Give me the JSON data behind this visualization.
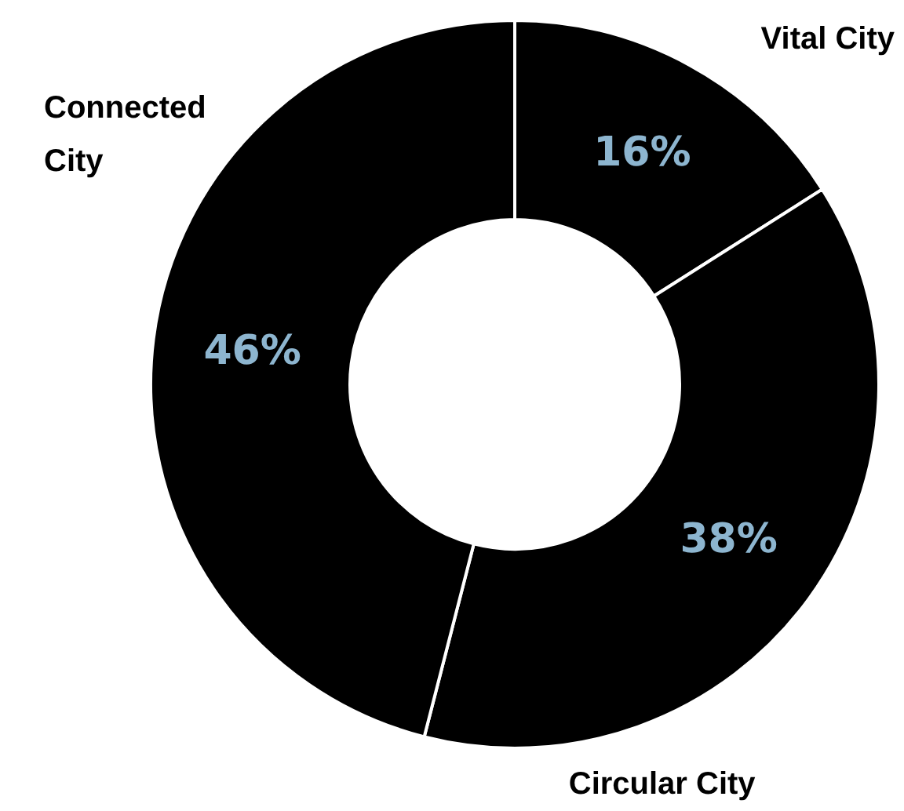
{
  "chart_data": {
    "type": "donut",
    "categories": [
      "Vital City",
      "Circular City",
      "Connected City"
    ],
    "values": [
      16,
      38,
      46
    ],
    "colors": [
      "#000000",
      "#000000",
      "#000000"
    ],
    "value_labels": [
      "16%",
      "38%",
      "46%"
    ],
    "legend": false
  }
}
